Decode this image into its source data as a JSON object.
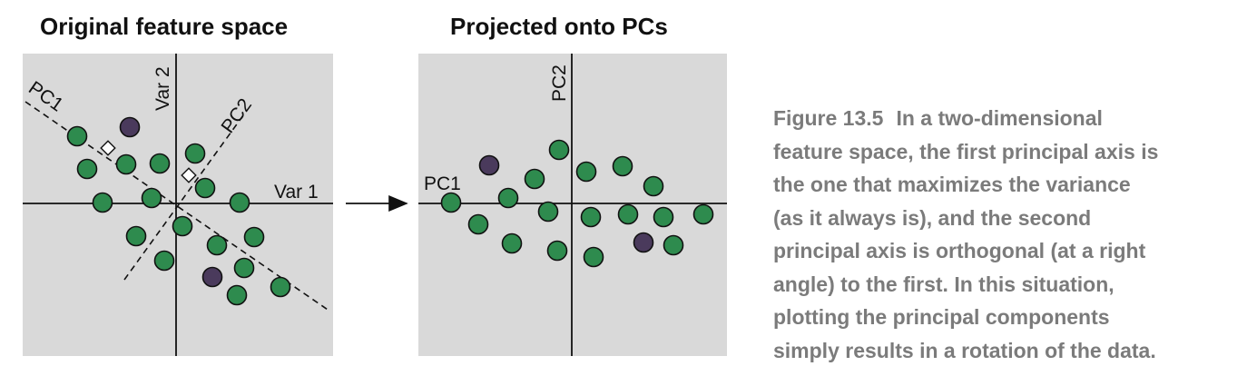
{
  "panels": {
    "left_title": "Original feature space",
    "right_title": "Projected onto PCs"
  },
  "labels": {
    "var1": "Var 1",
    "var2": "Var 2",
    "pc1_left": "PC1",
    "pc2_left": "PC2",
    "pc1_right": "PC1",
    "pc2_right": "PC2"
  },
  "caption": {
    "figure_label": "Figure 13.5",
    "lines": [
      "In a two-dimensional",
      "feature space, the first principal axis is",
      "the one that maximizes the variance",
      "(as it always is), and the second",
      "principal axis is orthogonal (at a right",
      "angle) to the first. In this situation,",
      "plotting the principal components",
      "simply results in a rotation of the data."
    ]
  },
  "colors": {
    "panel_bg": "#d9d9d9",
    "point_green": "#2e8b4e",
    "point_purple": "#4a3a5c",
    "caption_text": "#7b7b7b"
  }
}
